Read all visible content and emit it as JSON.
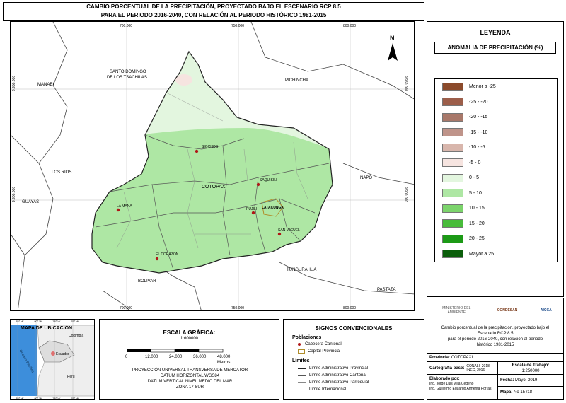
{
  "title": {
    "line1": "CAMBIO PORCENTUAL DE LA PRECIPITACIÓN, PROYECTADO BAJO EL ESCENARIO RCP 8.5",
    "line2": "PARA EL PERIODO 2016-2040, CON RELACIÓN AL PERIODO HISTÓRICO 1981-2015"
  },
  "map": {
    "ticks_x": [
      "700.000",
      "750.000",
      "800.000"
    ],
    "ticks_y": [
      "9.950.000",
      "9.900.000"
    ],
    "north": "N",
    "neighbors": [
      "SANTO DOMINGO",
      "DE LOS TSACHILAS",
      "PICHINCHA",
      "MANABI",
      "LOS RIOS",
      "GUAYAS",
      "NAPO",
      "TUNGURAHUA",
      "BOLIVAR",
      "PASTAZA"
    ],
    "province": "COTOPAXI",
    "cantons": [
      "SIGCHOS",
      "SAQUISILI",
      "LA MANA",
      "PUJILI",
      "LATACUNGA",
      "SAN MIGUEL",
      "EL CORAZON"
    ]
  },
  "legend": {
    "title": "LEYENDA",
    "subtitle": "ANOMALIA DE PRECIPITACIÓN (%)",
    "items": [
      {
        "label": "Menor a -25",
        "color": "#8b4a2b"
      },
      {
        "label": "-25 - -20",
        "color": "#9c5e4a"
      },
      {
        "label": "-20 - -15",
        "color": "#a8786a"
      },
      {
        "label": "-15 - -10",
        "color": "#bf948a"
      },
      {
        "label": "-10 - -5",
        "color": "#d8b6ac"
      },
      {
        "label": "-5 - 0",
        "color": "#f6e4e0"
      },
      {
        "label": "0 - 5",
        "color": "#e3f6df"
      },
      {
        "label": "5 - 10",
        "color": "#aee7a4"
      },
      {
        "label": "10 - 15",
        "color": "#7cd46c"
      },
      {
        "label": "15 - 20",
        "color": "#48bc3a"
      },
      {
        "label": "20 - 25",
        "color": "#1c9a16"
      },
      {
        "label": "Mayor a 25",
        "color": "#0b5e0b"
      }
    ]
  },
  "location": {
    "title": "MAPA DE UBICACIÓN",
    "ticks": [
      "-82° W",
      "-80° W",
      "-78° W",
      "-76° W"
    ],
    "labels": [
      "Colombia",
      "Ecuador",
      "Perú",
      "Océano Pacífico"
    ]
  },
  "scale": {
    "title": "ESCALA GRÁFICA:",
    "ratio": "1:600000",
    "ticks": [
      "0",
      "12.000",
      "24.000",
      "36.000",
      "48.000"
    ],
    "unit": "Metros",
    "proj1": "PROYECCIÓN UNIVERSAL TRANSVERSA DE MERCATOR",
    "proj2": "DATUM HORIZONTAL WGS84",
    "proj3": "DATUM VERTICAL NIVEL MEDIO DEL MAR",
    "proj4": "ZONA 17 SUR"
  },
  "signs": {
    "title": "SIGNOS CONVENCIONALES",
    "pob": "Poblaciones",
    "cab": "Cabecera Cantonal",
    "capital": "Capital Provincial",
    "lim": "Límites",
    "l1": "Límite Administrativo Provincial",
    "l2": "Límite Administrativo Cantonal",
    "l3": "Límite Administrativo Parroquial",
    "l4": "Límite Internacional"
  },
  "info": {
    "logos": [
      "MINISTERIO DEL AMBIENTE",
      "CONDESAN",
      "AICCA"
    ],
    "desc1": "Cambio porcentual de la precipitación, proyectado bajo el",
    "desc2": "Escenario RCP 8.5",
    "desc3": "para el periodo 2016-2040, con relación al periodo",
    "desc4": "histórico 1981-2015",
    "prov_label": "Provincia:",
    "prov_value": "COTOPAXI",
    "cart_label": "Cartografía base:",
    "cart_value1": "CONALI, 2018",
    "cart_value2": "INEC, 2016",
    "escala_label": "Escala de Trabajo:",
    "escala_value": "1:250000",
    "elab_label": "Elaborado por:",
    "elab1": "Ing. Jorge Luis Villa Cedeño",
    "elab2": "Ing. Guillermo Eduardo Armenta Porras",
    "fecha_label": "Fecha:",
    "fecha_value": "Mayo, 2019",
    "mapa_label": "Mapa:",
    "mapa_value": "No 15 /18"
  }
}
